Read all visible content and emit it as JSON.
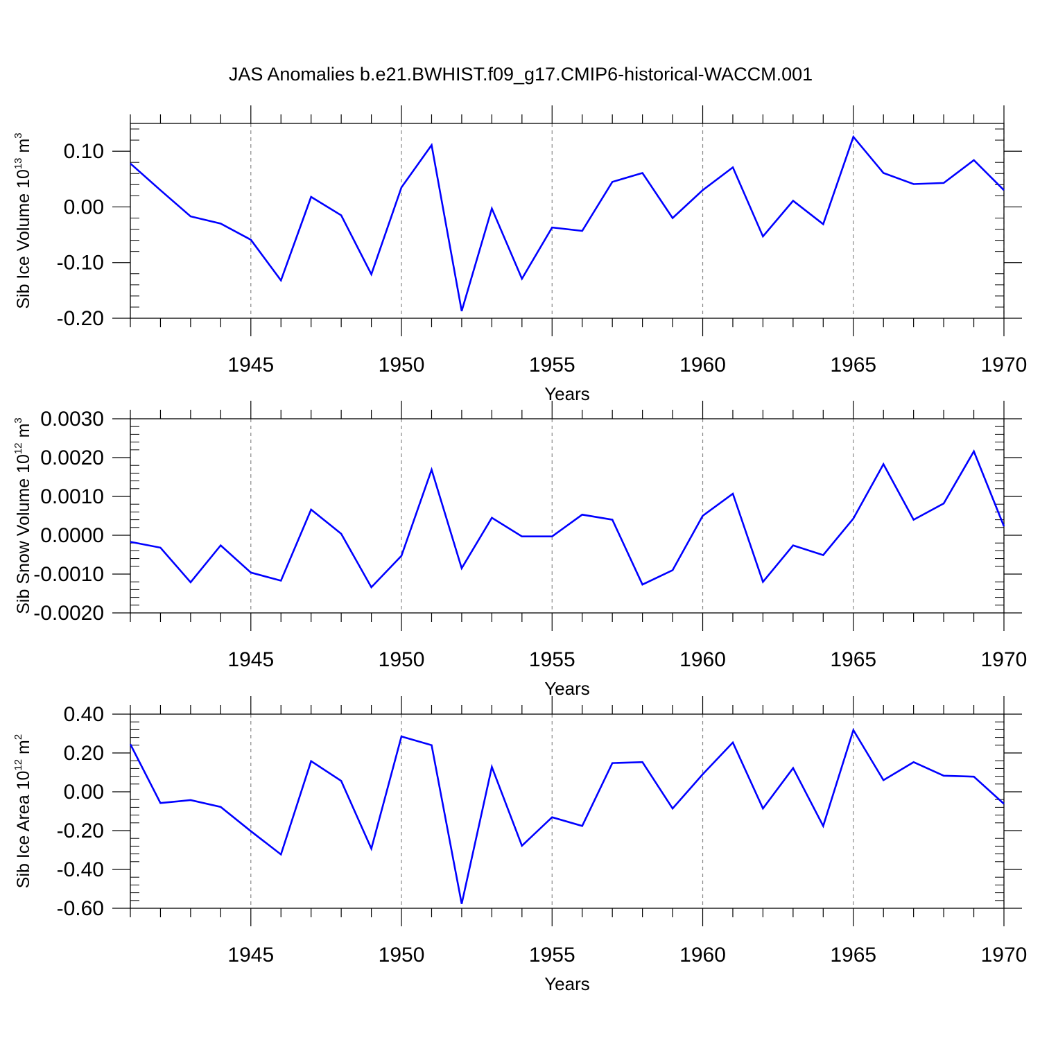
{
  "title": "JAS Anomalies b.e21.BWHIST.f09_g17.CMIP6-historical-WACCM.001",
  "line_color": "#0000ff",
  "chart_data": [
    {
      "type": "line",
      "ylabel_main": "Sib Ice Volume 10",
      "ylabel_exp": "13",
      "ylabel_unit": " m",
      "ylabel_unit_exp": "3",
      "xlabel": "Years",
      "xlim": [
        1941,
        1970
      ],
      "ylim": [
        -0.2,
        0.15
      ],
      "yticks": [
        -0.2,
        -0.1,
        0.0,
        0.1
      ],
      "ytick_labels": [
        "-0.20",
        "-0.10",
        "0.00",
        "0.10"
      ],
      "xticks": [
        1945,
        1950,
        1955,
        1960,
        1965,
        1970
      ],
      "xtick_labels": [
        "1945",
        "1950",
        "1955",
        "1960",
        "1965",
        "1970"
      ],
      "grid": "dashed vertical at major x ticks",
      "x": [
        1941,
        1942,
        1943,
        1944,
        1945,
        1946,
        1947,
        1948,
        1949,
        1950,
        1951,
        1952,
        1953,
        1954,
        1955,
        1956,
        1957,
        1958,
        1959,
        1960,
        1961,
        1962,
        1963,
        1964,
        1965,
        1966,
        1967,
        1968,
        1969,
        1970
      ],
      "values": [
        0.078,
        0.03,
        -0.017,
        -0.03,
        -0.059,
        -0.132,
        0.018,
        -0.015,
        -0.121,
        0.035,
        0.111,
        -0.187,
        -0.003,
        -0.129,
        -0.037,
        -0.043,
        0.045,
        0.061,
        -0.02,
        0.03,
        0.071,
        -0.053,
        0.011,
        -0.031,
        0.126,
        0.061,
        0.041,
        0.043,
        0.084,
        0.03
      ]
    },
    {
      "type": "line",
      "ylabel_main": "Sib Snow Volume 10",
      "ylabel_exp": "12",
      "ylabel_unit": " m",
      "ylabel_unit_exp": "3",
      "xlabel": "Years",
      "xlim": [
        1941,
        1970
      ],
      "ylim": [
        -0.002,
        0.003
      ],
      "yticks": [
        -0.002,
        -0.001,
        0.0,
        0.001,
        0.002,
        0.003
      ],
      "ytick_labels": [
        "-0.0020",
        "-0.0010",
        "0.0000",
        "0.0010",
        "0.0020",
        "0.0030"
      ],
      "xticks": [
        1945,
        1950,
        1955,
        1960,
        1965,
        1970
      ],
      "xtick_labels": [
        "1945",
        "1950",
        "1955",
        "1960",
        "1965",
        "1970"
      ],
      "grid": "dashed vertical at major x ticks",
      "x": [
        1941,
        1942,
        1943,
        1944,
        1945,
        1946,
        1947,
        1948,
        1949,
        1950,
        1951,
        1952,
        1953,
        1954,
        1955,
        1956,
        1957,
        1958,
        1959,
        1960,
        1961,
        1962,
        1963,
        1964,
        1965,
        1966,
        1967,
        1968,
        1969,
        1970
      ],
      "values": [
        -0.00017,
        -0.00032,
        -0.00121,
        -0.00026,
        -0.00096,
        -0.00117,
        0.00066,
        4e-05,
        -0.00134,
        -0.00053,
        0.00169,
        -0.00085,
        0.00045,
        -3e-05,
        -3e-05,
        0.00053,
        0.0004,
        -0.00127,
        -0.0009,
        0.0005,
        0.00107,
        -0.0012,
        -0.00026,
        -0.00051,
        0.00043,
        0.00183,
        0.0004,
        0.00082,
        0.00216,
        0.00023
      ]
    },
    {
      "type": "line",
      "ylabel_main": "Sib Ice Area 10",
      "ylabel_exp": "12",
      "ylabel_unit": " m",
      "ylabel_unit_exp": "2",
      "xlabel": "Years",
      "xlim": [
        1941,
        1970
      ],
      "ylim": [
        -0.6,
        0.4
      ],
      "yticks": [
        -0.6,
        -0.4,
        -0.2,
        0.0,
        0.2,
        0.4
      ],
      "ytick_labels": [
        "-0.60",
        "-0.40",
        "-0.20",
        "0.00",
        "0.20",
        "0.40"
      ],
      "xticks": [
        1945,
        1950,
        1955,
        1960,
        1965,
        1970
      ],
      "xtick_labels": [
        "1945",
        "1950",
        "1955",
        "1960",
        "1965",
        "1970"
      ],
      "grid": "dashed vertical at major x ticks",
      "x": [
        1941,
        1942,
        1943,
        1944,
        1945,
        1946,
        1947,
        1948,
        1949,
        1950,
        1951,
        1952,
        1953,
        1954,
        1955,
        1956,
        1957,
        1958,
        1959,
        1960,
        1961,
        1962,
        1963,
        1964,
        1965,
        1966,
        1967,
        1968,
        1969,
        1970
      ],
      "values": [
        0.245,
        -0.058,
        -0.043,
        -0.078,
        -0.203,
        -0.323,
        0.158,
        0.056,
        -0.293,
        0.285,
        0.24,
        -0.577,
        0.128,
        -0.278,
        -0.131,
        -0.176,
        0.148,
        0.153,
        -0.086,
        0.09,
        0.254,
        -0.086,
        0.122,
        -0.176,
        0.318,
        0.06,
        0.153,
        0.083,
        0.078,
        -0.062
      ]
    }
  ]
}
